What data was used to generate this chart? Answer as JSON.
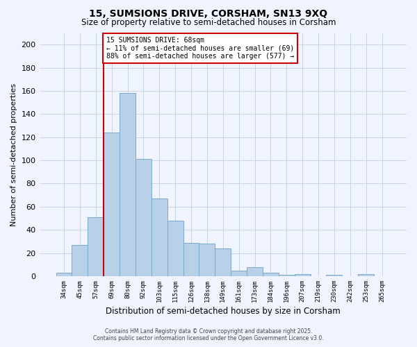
{
  "title": "15, SUMSIONS DRIVE, CORSHAM, SN13 9XQ",
  "subtitle": "Size of property relative to semi-detached houses in Corsham",
  "xlabel": "Distribution of semi-detached houses by size in Corsham",
  "ylabel": "Number of semi-detached properties",
  "categories": [
    "34sqm",
    "45sqm",
    "57sqm",
    "69sqm",
    "80sqm",
    "92sqm",
    "103sqm",
    "115sqm",
    "126sqm",
    "138sqm",
    "149sqm",
    "161sqm",
    "173sqm",
    "184sqm",
    "196sqm",
    "207sqm",
    "219sqm",
    "230sqm",
    "242sqm",
    "253sqm",
    "265sqm"
  ],
  "values": [
    3,
    27,
    51,
    124,
    158,
    101,
    67,
    48,
    29,
    28,
    24,
    5,
    8,
    3,
    1,
    2,
    0,
    1,
    0,
    2,
    0
  ],
  "bar_color": "#b8d0e8",
  "bar_edge_color": "#7aaace",
  "ylim": [
    0,
    210
  ],
  "yticks": [
    0,
    20,
    40,
    60,
    80,
    100,
    120,
    140,
    160,
    180,
    200
  ],
  "property_line_color": "#cc0000",
  "annotation_title": "15 SUMSIONS DRIVE: 68sqm",
  "annotation_line1": "← 11% of semi-detached houses are smaller (69)",
  "annotation_line2": "88% of semi-detached houses are larger (577) →",
  "annotation_box_color": "#cc0000",
  "background_color": "#f0f4ff",
  "grid_color": "#c0cfe0",
  "footer_line1": "Contains HM Land Registry data © Crown copyright and database right 2025.",
  "footer_line2": "Contains public sector information licensed under the Open Government Licence v3.0."
}
